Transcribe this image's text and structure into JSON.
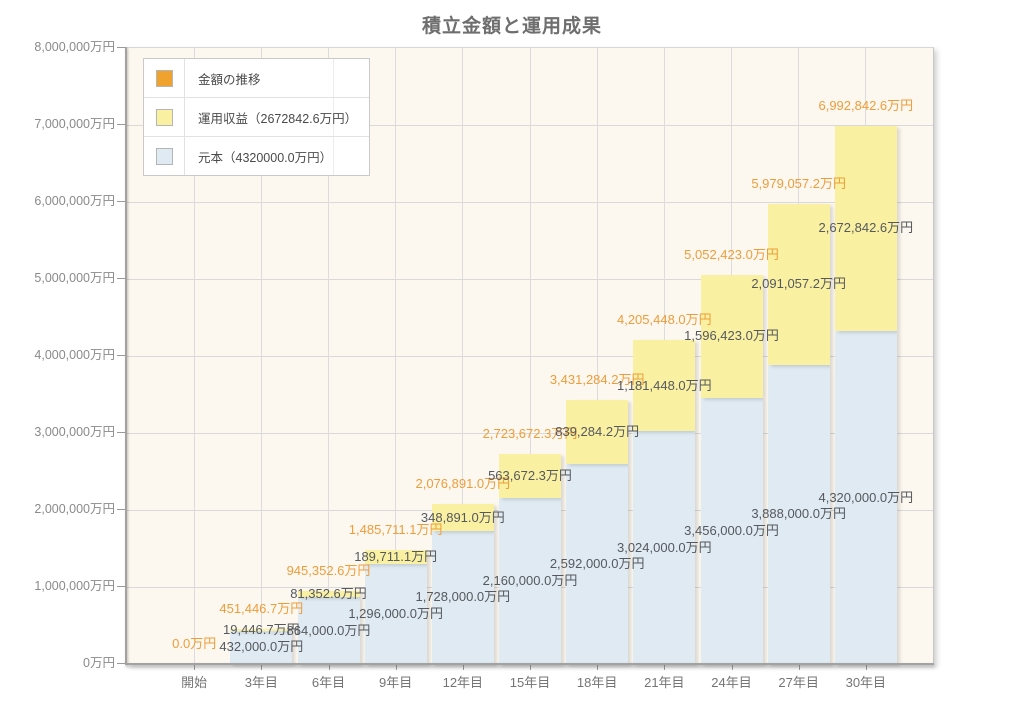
{
  "title": "積立金額と運用成果",
  "legend": {
    "items": [
      {
        "label": "金額の推移",
        "color": "#f0a22f"
      },
      {
        "label": "運用収益（2672842.6万円）",
        "color": "#faf0a1"
      },
      {
        "label": "元本（4320000.0万円）",
        "color": "#dfeaf2"
      }
    ]
  },
  "chart_data": {
    "type": "bar",
    "stacked": true,
    "title": "積立金額と運用成果",
    "categories": [
      "開始",
      "3年目",
      "6年目",
      "9年目",
      "12年目",
      "15年目",
      "18年目",
      "21年目",
      "24年目",
      "27年目",
      "30年目"
    ],
    "series": [
      {
        "name": "元本",
        "color": "#dfeaf2",
        "values": [
          0,
          432000.0,
          864000.0,
          1296000.0,
          1728000.0,
          2160000.0,
          2592000.0,
          3024000.0,
          3456000.0,
          3888000.0,
          4320000.0
        ]
      },
      {
        "name": "運用収益",
        "color": "#faf0a1",
        "values": [
          0,
          19446.7,
          81352.6,
          189711.1,
          348891.0,
          563672.3,
          839284.2,
          1181448.0,
          1596423.0,
          2091057.2,
          2672842.6
        ]
      }
    ],
    "totals": [
      0.0,
      451446.7,
      945352.6,
      1485711.1,
      2076891.0,
      2723672.3,
      3431284.2,
      4205448.0,
      5052423.0,
      5979057.2,
      6992842.6
    ],
    "unit": "万円",
    "ylim": [
      0,
      8000000
    ],
    "ytick_step": 1000000,
    "grid": true,
    "legend_position": "top-left",
    "colors": {
      "total_label": "#ee9d3a",
      "value_label": "#55595e",
      "plot_background": "#fcf8f0"
    }
  }
}
